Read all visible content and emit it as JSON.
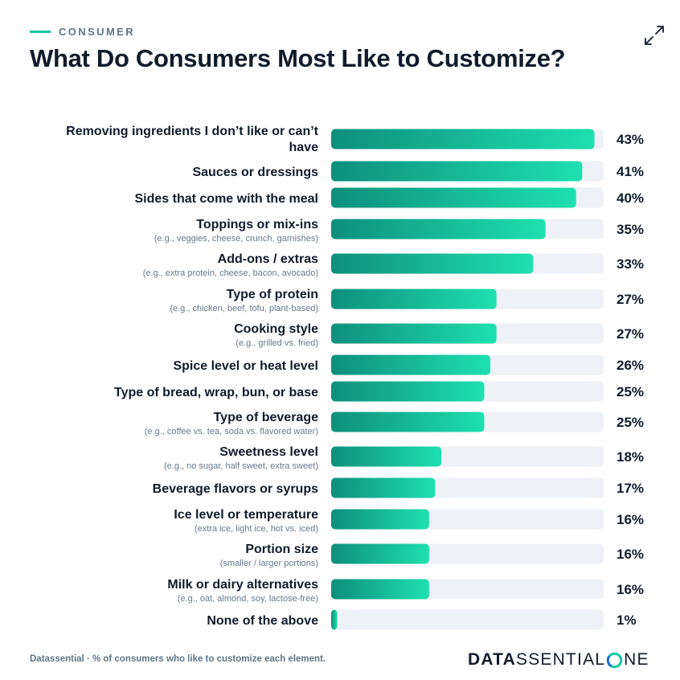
{
  "header": {
    "eyebrow": "CONSUMER",
    "title": "What Do Consumers Most Like to Customize?",
    "expand_icon": "expand-arrows-icon"
  },
  "colors": {
    "accent": "#12c9a2",
    "bar_start": "#0e8f7c",
    "bar_end": "#1ee0b0",
    "track": "#eef1f5",
    "text": "#101b2b",
    "muted": "#68788a"
  },
  "chart_data": {
    "type": "bar",
    "orientation": "horizontal",
    "title": "What Do Consumers Most Like to Customize?",
    "xlim": [
      0,
      45
    ],
    "unit": "%",
    "categories": [
      {
        "label": [
          "Removing ingredients I don’t like or can’t",
          "have"
        ],
        "sub": "",
        "value": 43,
        "value_label": "43%"
      },
      {
        "label": [
          "Sauces or dressings"
        ],
        "sub": "",
        "value": 41,
        "value_label": "41%"
      },
      {
        "label": [
          "Sides that come with the meal"
        ],
        "sub": "",
        "value": 40,
        "value_label": "40%"
      },
      {
        "label": [
          "Toppings or mix-ins"
        ],
        "sub": "(e.g., veggies, cheese, crunch, garnishes)",
        "value": 35,
        "value_label": "35%"
      },
      {
        "label": [
          "Add-ons / extras"
        ],
        "sub": "(e.g., extra protein, cheese, bacon, avocado)",
        "value": 33,
        "value_label": "33%"
      },
      {
        "label": [
          "Type of protein"
        ],
        "sub": "(e.g., chicken, beef, tofu, plant-based)",
        "value": 27,
        "value_label": "27%"
      },
      {
        "label": [
          "Cooking style"
        ],
        "sub": "(e.g., grilled vs. fried)",
        "value": 27,
        "value_label": "27%"
      },
      {
        "label": [
          "Spice level or heat level"
        ],
        "sub": "",
        "value": 26,
        "value_label": "26%"
      },
      {
        "label": [
          "Type of bread, wrap, bun, or base"
        ],
        "sub": "",
        "value": 25,
        "value_label": "25%"
      },
      {
        "label": [
          "Type of beverage"
        ],
        "sub": "(e.g., coffee vs. tea, soda vs. flavored water)",
        "value": 25,
        "value_label": "25%"
      },
      {
        "label": [
          "Sweetness level"
        ],
        "sub": "(e.g., no sugar, half sweet, extra sweet)",
        "value": 18,
        "value_label": "18%"
      },
      {
        "label": [
          "Beverage flavors or syrups"
        ],
        "sub": "",
        "value": 17,
        "value_label": "17%"
      },
      {
        "label": [
          "Ice level or temperature"
        ],
        "sub": "(extra ice, light ice, hot vs. iced)",
        "value": 16,
        "value_label": "16%"
      },
      {
        "label": [
          "Portion size"
        ],
        "sub": "(smaller / larger portions)",
        "value": 16,
        "value_label": "16%"
      },
      {
        "label": [
          "Milk or dairy alternatives"
        ],
        "sub": "(e.g., oat, almond, soy, lactose-free)",
        "value": 16,
        "value_label": "16%"
      },
      {
        "label": [
          "None of the above"
        ],
        "sub": "",
        "value": 1,
        "value_label": "1%"
      }
    ]
  },
  "footer": {
    "source_note": "Datassential · % of consumers who like to customize each element.",
    "logo_strong": "DATA",
    "logo_light": "SSENTIAL",
    "logo_tail": "NE"
  }
}
